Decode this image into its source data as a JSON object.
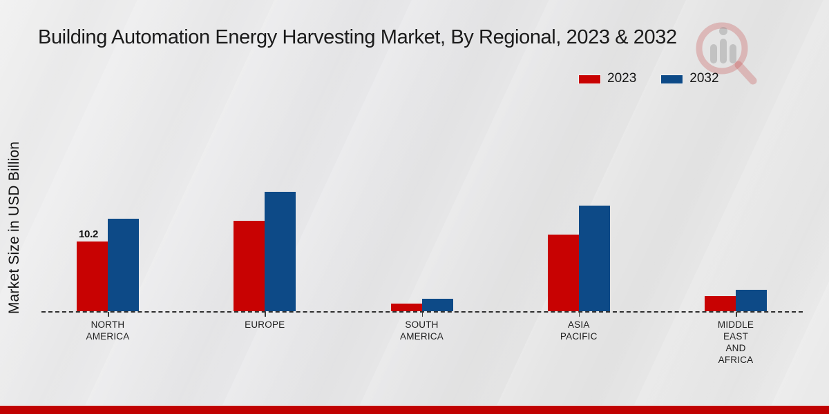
{
  "title": "Building Automation Energy Harvesting Market, By Regional, 2023 & 2032",
  "ylabel": "Market Size in USD Billion",
  "legend": {
    "items": [
      {
        "label": "2023",
        "color": "#c80202"
      },
      {
        "label": "2032",
        "color": "#0d4a87"
      }
    ]
  },
  "colors": {
    "series_2023": "#c80202",
    "series_2032": "#0d4a87",
    "footer_stripe": "#c00202",
    "axis": "#2e2e2e",
    "watermark_red": "#c84e4e",
    "watermark_gray": "#8c8c8c"
  },
  "chart_data": {
    "type": "bar",
    "title": "Building Automation Energy Harvesting Market, By Regional, 2023 & 2032",
    "ylabel": "Market Size in USD Billion",
    "categories": [
      "NORTH AMERICA",
      "EUROPE",
      "SOUTH AMERICA",
      "ASIA PACIFIC",
      "MIDDLE EAST AND AFRICA"
    ],
    "series": [
      {
        "name": "2023",
        "color": "#c80202",
        "values": [
          10.2,
          13.2,
          1.1,
          11.2,
          2.2
        ]
      },
      {
        "name": "2032",
        "color": "#0d4a87",
        "values": [
          13.5,
          17.5,
          1.8,
          15.5,
          3.1
        ]
      }
    ],
    "data_labels": [
      {
        "series": "2023",
        "category": "NORTH AMERICA",
        "text": "10.2"
      }
    ],
    "legend_position": "top-right",
    "grid": false,
    "baseline_style": "dashed",
    "ylim": [
      0,
      18
    ]
  },
  "watermark": {
    "name": "market-research-magnifier-logo"
  }
}
